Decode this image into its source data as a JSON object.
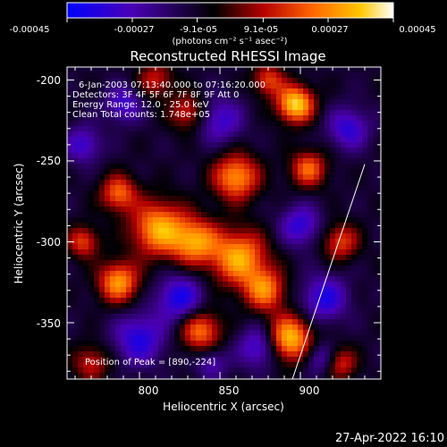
{
  "colorbar": {
    "ticks": [
      "-0.00045",
      "-0.00027",
      "-9.1e-05",
      "9.1e-05",
      "0.00027",
      "0.00045"
    ],
    "tick_values": [
      -0.00045,
      -0.00027,
      -9.1e-05,
      9.1e-05,
      0.00027,
      0.00045
    ],
    "units": "(photons cm⁻² s⁻¹ asec⁻²)",
    "range": [
      -0.00045,
      0.00045
    ],
    "colormap": [
      "#0000ff",
      "#4b00b4",
      "#000000",
      "#b40000",
      "#ff6400",
      "#ffc800",
      "#ffffff"
    ]
  },
  "info": {
    "time_range": "6-Jan-2003 07:13:40.000 to 07:16:20.000",
    "detectors": "Detectors: 3F 4F 5F 6F 7F 8F 9F Att 0",
    "energy": "Energy Range: 12.0 - 25.0 keV",
    "clean": "Clean     Total counts: 1.748e+05",
    "peak": "Position of Peak = [890,-224]"
  },
  "timestamp": "27-Apr-2022 16:10",
  "chart_data": {
    "type": "heatmap",
    "title": "Reconstructed RHESSI Image",
    "xlabel": "Heliocentric X (arcsec)",
    "ylabel": "Heliocentric Y (arcsec)",
    "x_ticks": [
      800,
      850,
      900
    ],
    "y_ticks": [
      -200,
      -250,
      -300,
      -350
    ],
    "xlim": [
      755,
      800
    ],
    "ylim": [
      -385,
      -192
    ],
    "peak": [
      890,
      -224
    ],
    "limb_line": [
      [
        895,
        -385
      ],
      [
        940,
        -252
      ]
    ],
    "sources": [
      {
        "x": 897,
        "y": -215,
        "amp": 1.0,
        "w": 8
      },
      {
        "x": 893,
        "y": -360,
        "amp": 0.95,
        "w": 10
      },
      {
        "x": 860,
        "y": -260,
        "amp": 0.8,
        "w": 10
      },
      {
        "x": 862,
        "y": -310,
        "amp": 0.85,
        "w": 12
      },
      {
        "x": 812,
        "y": -292,
        "amp": 0.85,
        "w": 12
      },
      {
        "x": 835,
        "y": -300,
        "amp": 0.75,
        "w": 10
      },
      {
        "x": 787,
        "y": -325,
        "amp": 0.8,
        "w": 9
      },
      {
        "x": 838,
        "y": -355,
        "amp": 0.7,
        "w": 9
      },
      {
        "x": 878,
        "y": -330,
        "amp": 0.7,
        "w": 9
      },
      {
        "x": 905,
        "y": -255,
        "amp": 0.65,
        "w": 8
      },
      {
        "x": 787,
        "y": -270,
        "amp": 0.65,
        "w": 8
      },
      {
        "x": 765,
        "y": -300,
        "amp": 0.55,
        "w": 7
      },
      {
        "x": 830,
        "y": -220,
        "amp": 0.5,
        "w": 8
      },
      {
        "x": 925,
        "y": -300,
        "amp": 0.55,
        "w": 8
      },
      {
        "x": 925,
        "y": -375,
        "amp": 0.5,
        "w": 7
      },
      {
        "x": 770,
        "y": -375,
        "amp": 0.45,
        "w": 8
      },
      {
        "x": 810,
        "y": -200,
        "amp": 0.45,
        "w": 8
      },
      {
        "x": 880,
        "y": -200,
        "amp": 0.55,
        "w": 7
      },
      {
        "x": 825,
        "y": -335,
        "amp": -0.6,
        "w": 10
      },
      {
        "x": 875,
        "y": -365,
        "amp": -0.55,
        "w": 9
      },
      {
        "x": 800,
        "y": -360,
        "amp": -0.55,
        "w": 11
      },
      {
        "x": 850,
        "y": -225,
        "amp": -0.45,
        "w": 10
      },
      {
        "x": 915,
        "y": -335,
        "amp": -0.55,
        "w": 10
      },
      {
        "x": 765,
        "y": -240,
        "amp": -0.45,
        "w": 8
      },
      {
        "x": 790,
        "y": -215,
        "amp": -0.45,
        "w": 8
      },
      {
        "x": 930,
        "y": -230,
        "amp": -0.5,
        "w": 9
      },
      {
        "x": 900,
        "y": -290,
        "amp": -0.5,
        "w": 9
      },
      {
        "x": 845,
        "y": -375,
        "amp": -0.35,
        "w": 7
      },
      {
        "x": 912,
        "y": -372,
        "amp": -0.4,
        "w": 7
      }
    ]
  }
}
